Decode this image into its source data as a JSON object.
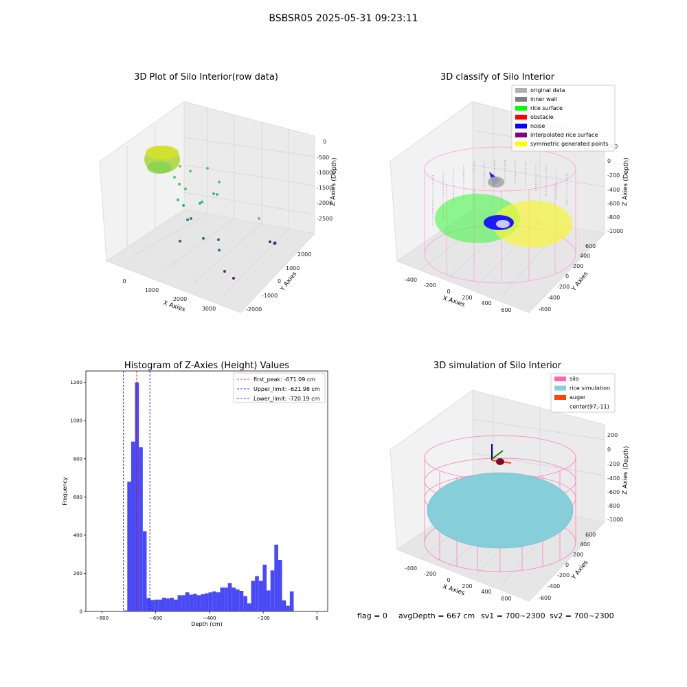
{
  "figure_title": "BSBSR05 2025-05-31 09:23:11",
  "footer": {
    "flag": "flag = 0",
    "avg_depth": "avgDepth = 667 cm",
    "sv1": "sv1 = 700~2300",
    "sv2": "sv2 = 700~2300"
  },
  "chart_data": [
    {
      "type": "scatter",
      "title": "3D Plot of Silo Interior(row data)",
      "xlabel": "X Axies",
      "ylabel": "Y Axies",
      "zlabel": "Z Axies (Depth)",
      "x_ticks": [
        "0",
        "1000",
        "2000",
        "3000"
      ],
      "y_ticks": [
        "-2000",
        "-1000",
        "0",
        "1000",
        "2000"
      ],
      "z_ticks": [
        "0",
        "-500",
        "-1000",
        "-1500",
        "-2000",
        "-2500"
      ],
      "colormap": "viridis"
    },
    {
      "type": "scatter",
      "title": "3D classify of Silo Interior",
      "xlabel": "X Axies",
      "ylabel": "Y Axies",
      "zlabel": "Z Axies (Depth)",
      "x_ticks": [
        "-400",
        "-200",
        "0",
        "200",
        "400",
        "600"
      ],
      "y_ticks": [
        "-600",
        "-400",
        "-200",
        "0",
        "200",
        "400",
        "600"
      ],
      "z_ticks": [
        "200",
        "0",
        "-200",
        "-400",
        "-600",
        "-800",
        "-1000"
      ],
      "legend": [
        {
          "label": "original data",
          "color": "#b0b0b0"
        },
        {
          "label": "inner wall",
          "color": "#808080"
        },
        {
          "label": "rice surface",
          "color": "#00ff00"
        },
        {
          "label": "obstacle",
          "color": "#ff0000"
        },
        {
          "label": "noise",
          "color": "#0000ff"
        },
        {
          "label": "interpolated rice surface",
          "color": "#800080"
        },
        {
          "label": "symmetric generated points",
          "color": "#ffff00"
        }
      ]
    },
    {
      "type": "bar",
      "title": "Histogram of Z-Axies (Height) Values",
      "xlabel": "Depth (cm)",
      "ylabel": "Frequency",
      "xlim": [
        -860,
        40
      ],
      "ylim": [
        0,
        1260
      ],
      "x_ticks": [
        -800,
        -600,
        -400,
        -200,
        0
      ],
      "y_ticks": [
        0,
        200,
        400,
        600,
        800,
        1000,
        1200
      ],
      "bar_color": "#4a4af5",
      "bins": [
        {
          "left": -720.19,
          "width": 14.4,
          "value": 5
        },
        {
          "left": -705.8,
          "width": 14.4,
          "value": 680
        },
        {
          "left": -691.4,
          "width": 14.4,
          "value": 890
        },
        {
          "left": -677.0,
          "width": 14.4,
          "value": 1200
        },
        {
          "left": -662.6,
          "width": 14.4,
          "value": 860
        },
        {
          "left": -648.2,
          "width": 14.4,
          "value": 420
        },
        {
          "left": -633.8,
          "width": 14.4,
          "value": 70
        },
        {
          "left": -619.4,
          "width": 14.4,
          "value": 60
        },
        {
          "left": -605.0,
          "width": 14.4,
          "value": 62
        },
        {
          "left": -590.6,
          "width": 14.4,
          "value": 62
        },
        {
          "left": -576.2,
          "width": 14.4,
          "value": 72
        },
        {
          "left": -561.8,
          "width": 14.4,
          "value": 68
        },
        {
          "left": -547.4,
          "width": 14.4,
          "value": 72
        },
        {
          "left": -533.0,
          "width": 14.4,
          "value": 62
        },
        {
          "left": -518.6,
          "width": 14.4,
          "value": 85
        },
        {
          "left": -504.2,
          "width": 14.4,
          "value": 85
        },
        {
          "left": -489.8,
          "width": 14.4,
          "value": 100
        },
        {
          "left": -475.4,
          "width": 14.4,
          "value": 88
        },
        {
          "left": -461.0,
          "width": 14.4,
          "value": 92
        },
        {
          "left": -446.6,
          "width": 14.4,
          "value": 85
        },
        {
          "left": -432.2,
          "width": 14.4,
          "value": 90
        },
        {
          "left": -417.8,
          "width": 14.4,
          "value": 95
        },
        {
          "left": -403.4,
          "width": 14.4,
          "value": 100
        },
        {
          "left": -389.0,
          "width": 14.4,
          "value": 105
        },
        {
          "left": -374.6,
          "width": 14.4,
          "value": 100
        },
        {
          "left": -360.2,
          "width": 14.4,
          "value": 125
        },
        {
          "left": -345.8,
          "width": 14.4,
          "value": 125
        },
        {
          "left": -331.4,
          "width": 14.4,
          "value": 148
        },
        {
          "left": -317.0,
          "width": 14.4,
          "value": 125
        },
        {
          "left": -302.6,
          "width": 14.4,
          "value": 115
        },
        {
          "left": -288.2,
          "width": 14.4,
          "value": 108
        },
        {
          "left": -273.8,
          "width": 14.4,
          "value": 80
        },
        {
          "left": -259.4,
          "width": 14.4,
          "value": 42
        },
        {
          "left": -245.0,
          "width": 14.4,
          "value": 160
        },
        {
          "left": -230.6,
          "width": 14.4,
          "value": 185
        },
        {
          "left": -216.2,
          "width": 14.4,
          "value": 160
        },
        {
          "left": -201.8,
          "width": 14.4,
          "value": 245
        },
        {
          "left": -187.4,
          "width": 14.4,
          "value": 110
        },
        {
          "left": -173.0,
          "width": 14.4,
          "value": 215
        },
        {
          "left": -158.6,
          "width": 14.4,
          "value": 350
        },
        {
          "left": -144.2,
          "width": 14.4,
          "value": 270
        },
        {
          "left": -129.8,
          "width": 14.4,
          "value": 58
        },
        {
          "left": -115.4,
          "width": 14.4,
          "value": 30
        },
        {
          "left": -101.0,
          "width": 14.4,
          "value": 105
        }
      ],
      "vlines": [
        {
          "label": "first_peak: -671.09 cm",
          "x": -671.09,
          "color": "#ff0000"
        },
        {
          "label": "Upper_limit: -621.98 cm",
          "x": -621.98,
          "color": "#0000ff"
        },
        {
          "label": "Lower_limit: -720.19 cm",
          "x": -720.19,
          "color": "#0000ff"
        }
      ]
    },
    {
      "type": "scatter",
      "title": "3D simulation of Silo Interior",
      "xlabel": "X Axies",
      "ylabel": "Y Axies",
      "zlabel": "Z Axies (Depth)",
      "x_ticks": [
        "-400",
        "-200",
        "0",
        "200",
        "400",
        "600"
      ],
      "y_ticks": [
        "-600",
        "-400",
        "-200",
        "0",
        "200",
        "400",
        "600"
      ],
      "z_ticks": [
        "200",
        "0",
        "-200",
        "-400",
        "-600",
        "-800",
        "-1000"
      ],
      "legend": [
        {
          "label": "silo",
          "color": "#ff69b4"
        },
        {
          "label": "rice simulation",
          "color": "#87cedb"
        },
        {
          "label": "auger",
          "color": "#ff4500"
        },
        {
          "label": "center(97,-11)",
          "color": "#ffffff"
        }
      ]
    }
  ]
}
